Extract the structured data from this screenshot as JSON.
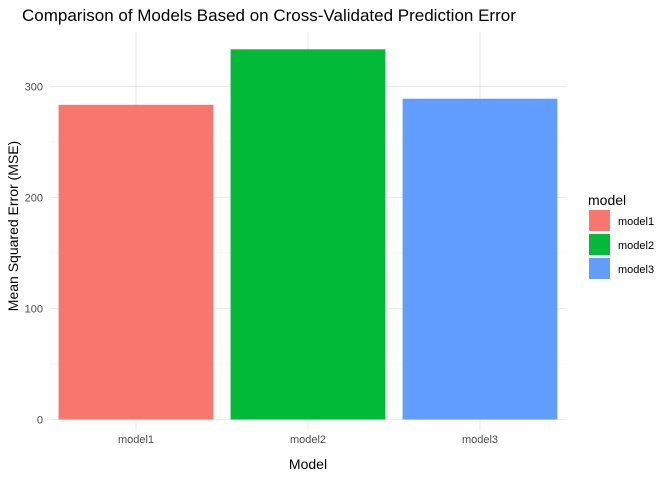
{
  "chart_data": {
    "type": "bar",
    "title": "Comparison of Models Based on Cross-Validated Prediction Error",
    "xlabel": "Model",
    "ylabel": "Mean Squared Error (MSE)",
    "categories": [
      "model1",
      "model2",
      "model3"
    ],
    "values": [
      283.5,
      333.5,
      289.0
    ],
    "colors": [
      "#F8766D",
      "#00BA38",
      "#619CFF"
    ],
    "ylim": [
      0,
      350
    ],
    "yticks": [
      0,
      100,
      200,
      300
    ],
    "grid": true,
    "legend": {
      "title": "model",
      "placement": "right",
      "entries": [
        "model1",
        "model2",
        "model3"
      ]
    }
  }
}
